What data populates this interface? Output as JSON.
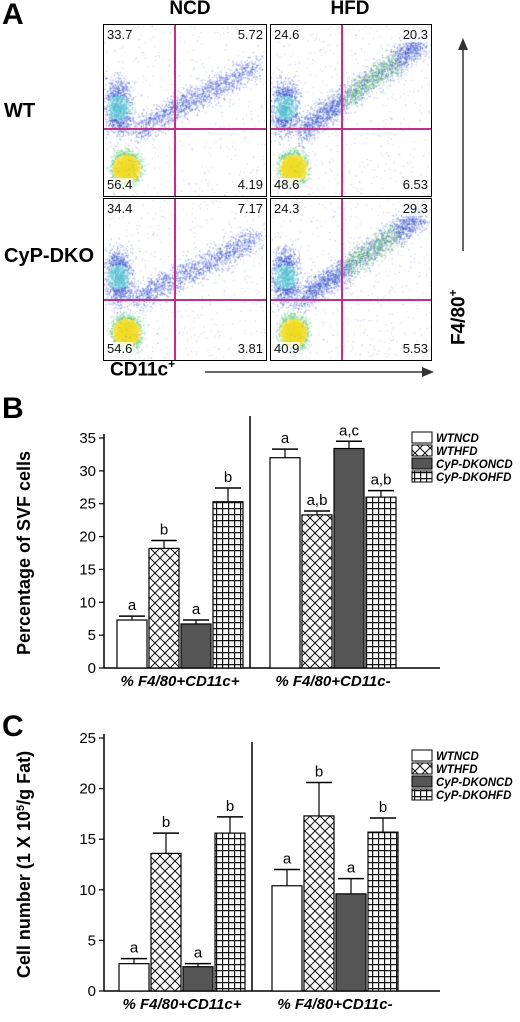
{
  "panel_a": {
    "letter": "A",
    "col_headers": [
      "NCD",
      "HFD"
    ],
    "row_labels": [
      "WT",
      "CyP-DKO"
    ],
    "x_axis_label": "CD11c",
    "x_axis_sup": "+",
    "y_axis_label": "F4/80",
    "y_axis_sup": "+",
    "plots": [
      {
        "id": "wt-ncd",
        "ul": "33.7",
        "ur": "5.72",
        "ll": "56.4",
        "lr": "4.19"
      },
      {
        "id": "wt-hfd",
        "ul": "24.6",
        "ur": "20.3",
        "ll": "48.6",
        "lr": "6.53"
      },
      {
        "id": "dko-ncd",
        "ul": "34.4",
        "ur": "7.17",
        "ll": "54.6",
        "lr": "3.81"
      },
      {
        "id": "dko-hfd",
        "ul": "24.3",
        "ur": "29.3",
        "ll": "40.9",
        "lr": "5.53"
      }
    ]
  },
  "chart_data": [
    {
      "type": "bar",
      "panel": "B",
      "ylabel": "Percentage of SVF cells",
      "ylim": [
        0,
        35
      ],
      "yticks": [
        "0",
        "5",
        "10",
        "15",
        "20",
        "25",
        "30",
        "35"
      ],
      "groups": [
        "% F4/80+CD11c+",
        "% F4/80+CD11c-"
      ],
      "series": [
        {
          "name": "WTNCD",
          "values": [
            7.3,
            32.0
          ],
          "errors": [
            0.6,
            1.3
          ],
          "labels": [
            "a",
            "a"
          ],
          "color": "#ffffff",
          "pattern": "white"
        },
        {
          "name": "WTHFD",
          "values": [
            18.2,
            23.3
          ],
          "errors": [
            1.2,
            0.6
          ],
          "labels": [
            "b",
            "a,b"
          ],
          "color": "#ffffff",
          "pattern": "cross"
        },
        {
          "name": "CyP-DKONCD",
          "values": [
            6.7,
            33.4
          ],
          "errors": [
            0.6,
            1.1
          ],
          "labels": [
            "a",
            "a,c"
          ],
          "color": "#555555",
          "pattern": "solid"
        },
        {
          "name": "CyP-DKOHFD",
          "values": [
            25.3,
            26.0
          ],
          "errors": [
            2.1,
            1.0
          ],
          "labels": [
            "b",
            "a,b"
          ],
          "color": "#ffffff",
          "pattern": "grid"
        }
      ],
      "legend_position": "top-right",
      "letter": "B"
    },
    {
      "type": "bar",
      "panel": "C",
      "ylabel": "Cell number (1 X 10",
      "ylabel_sup": "5",
      "ylabel_tail": "/g Fat)",
      "ylim": [
        0,
        25
      ],
      "yticks": [
        "0",
        "5",
        "10",
        "15",
        "20",
        "25"
      ],
      "groups": [
        "% F4/80+CD11c+",
        "% F4/80+CD11c-"
      ],
      "series": [
        {
          "name": "WTNCD",
          "values": [
            2.7,
            10.4
          ],
          "errors": [
            0.5,
            1.6
          ],
          "labels": [
            "a",
            "a"
          ],
          "color": "#ffffff",
          "pattern": "white"
        },
        {
          "name": "WTHFD",
          "values": [
            13.6,
            17.3
          ],
          "errors": [
            2.0,
            3.3
          ],
          "labels": [
            "b",
            "b"
          ],
          "color": "#ffffff",
          "pattern": "cross"
        },
        {
          "name": "CyP-DKONCD",
          "values": [
            2.4,
            9.6
          ],
          "errors": [
            0.3,
            1.5
          ],
          "labels": [
            "a",
            "a"
          ],
          "color": "#555555",
          "pattern": "solid"
        },
        {
          "name": "CyP-DKOHFD",
          "values": [
            15.6,
            15.7
          ],
          "errors": [
            1.6,
            1.4
          ],
          "labels": [
            "b",
            "b"
          ],
          "color": "#ffffff",
          "pattern": "grid"
        }
      ],
      "legend_position": "top-right",
      "letter": "C"
    }
  ]
}
